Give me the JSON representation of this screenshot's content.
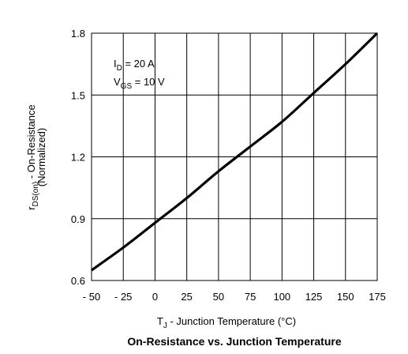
{
  "chart_data": {
    "type": "line",
    "title": "On-Resistance vs. Junction Temperature",
    "xlabel": {
      "main": "T",
      "sub": "J",
      "rest": " - Junction Temperature (°C)"
    },
    "ylabel": {
      "pre": "r",
      "sub": "DS(on)",
      "rest": " - On-Resistance",
      "line2": "(Normalized)"
    },
    "xlim": [
      -50,
      175
    ],
    "ylim": [
      0.6,
      1.8
    ],
    "xticks": [
      -50,
      -25,
      0,
      25,
      50,
      75,
      100,
      125,
      150,
      175
    ],
    "xtick_labels": [
      "- 50",
      "- 25",
      "0",
      "25",
      "50",
      "75",
      "100",
      "125",
      "150",
      "175"
    ],
    "yticks": [
      0.6,
      0.9,
      1.2,
      1.5,
      1.8
    ],
    "ytick_labels": [
      "0.6",
      "0.9",
      "1.2",
      "1.5",
      "1.8"
    ],
    "grid": true,
    "line_color": "#000000",
    "annotations": [
      {
        "main": "I",
        "sub": "D",
        "rest": " = 20 A"
      },
      {
        "main": "V",
        "sub": "GS",
        "rest": " = 10 V"
      }
    ],
    "series": [
      {
        "x": [
          -50,
          -25,
          0,
          25,
          50,
          75,
          100,
          125,
          150,
          175
        ],
        "y": [
          0.65,
          0.76,
          0.88,
          1.0,
          1.13,
          1.25,
          1.37,
          1.51,
          1.65,
          1.8
        ]
      }
    ]
  }
}
